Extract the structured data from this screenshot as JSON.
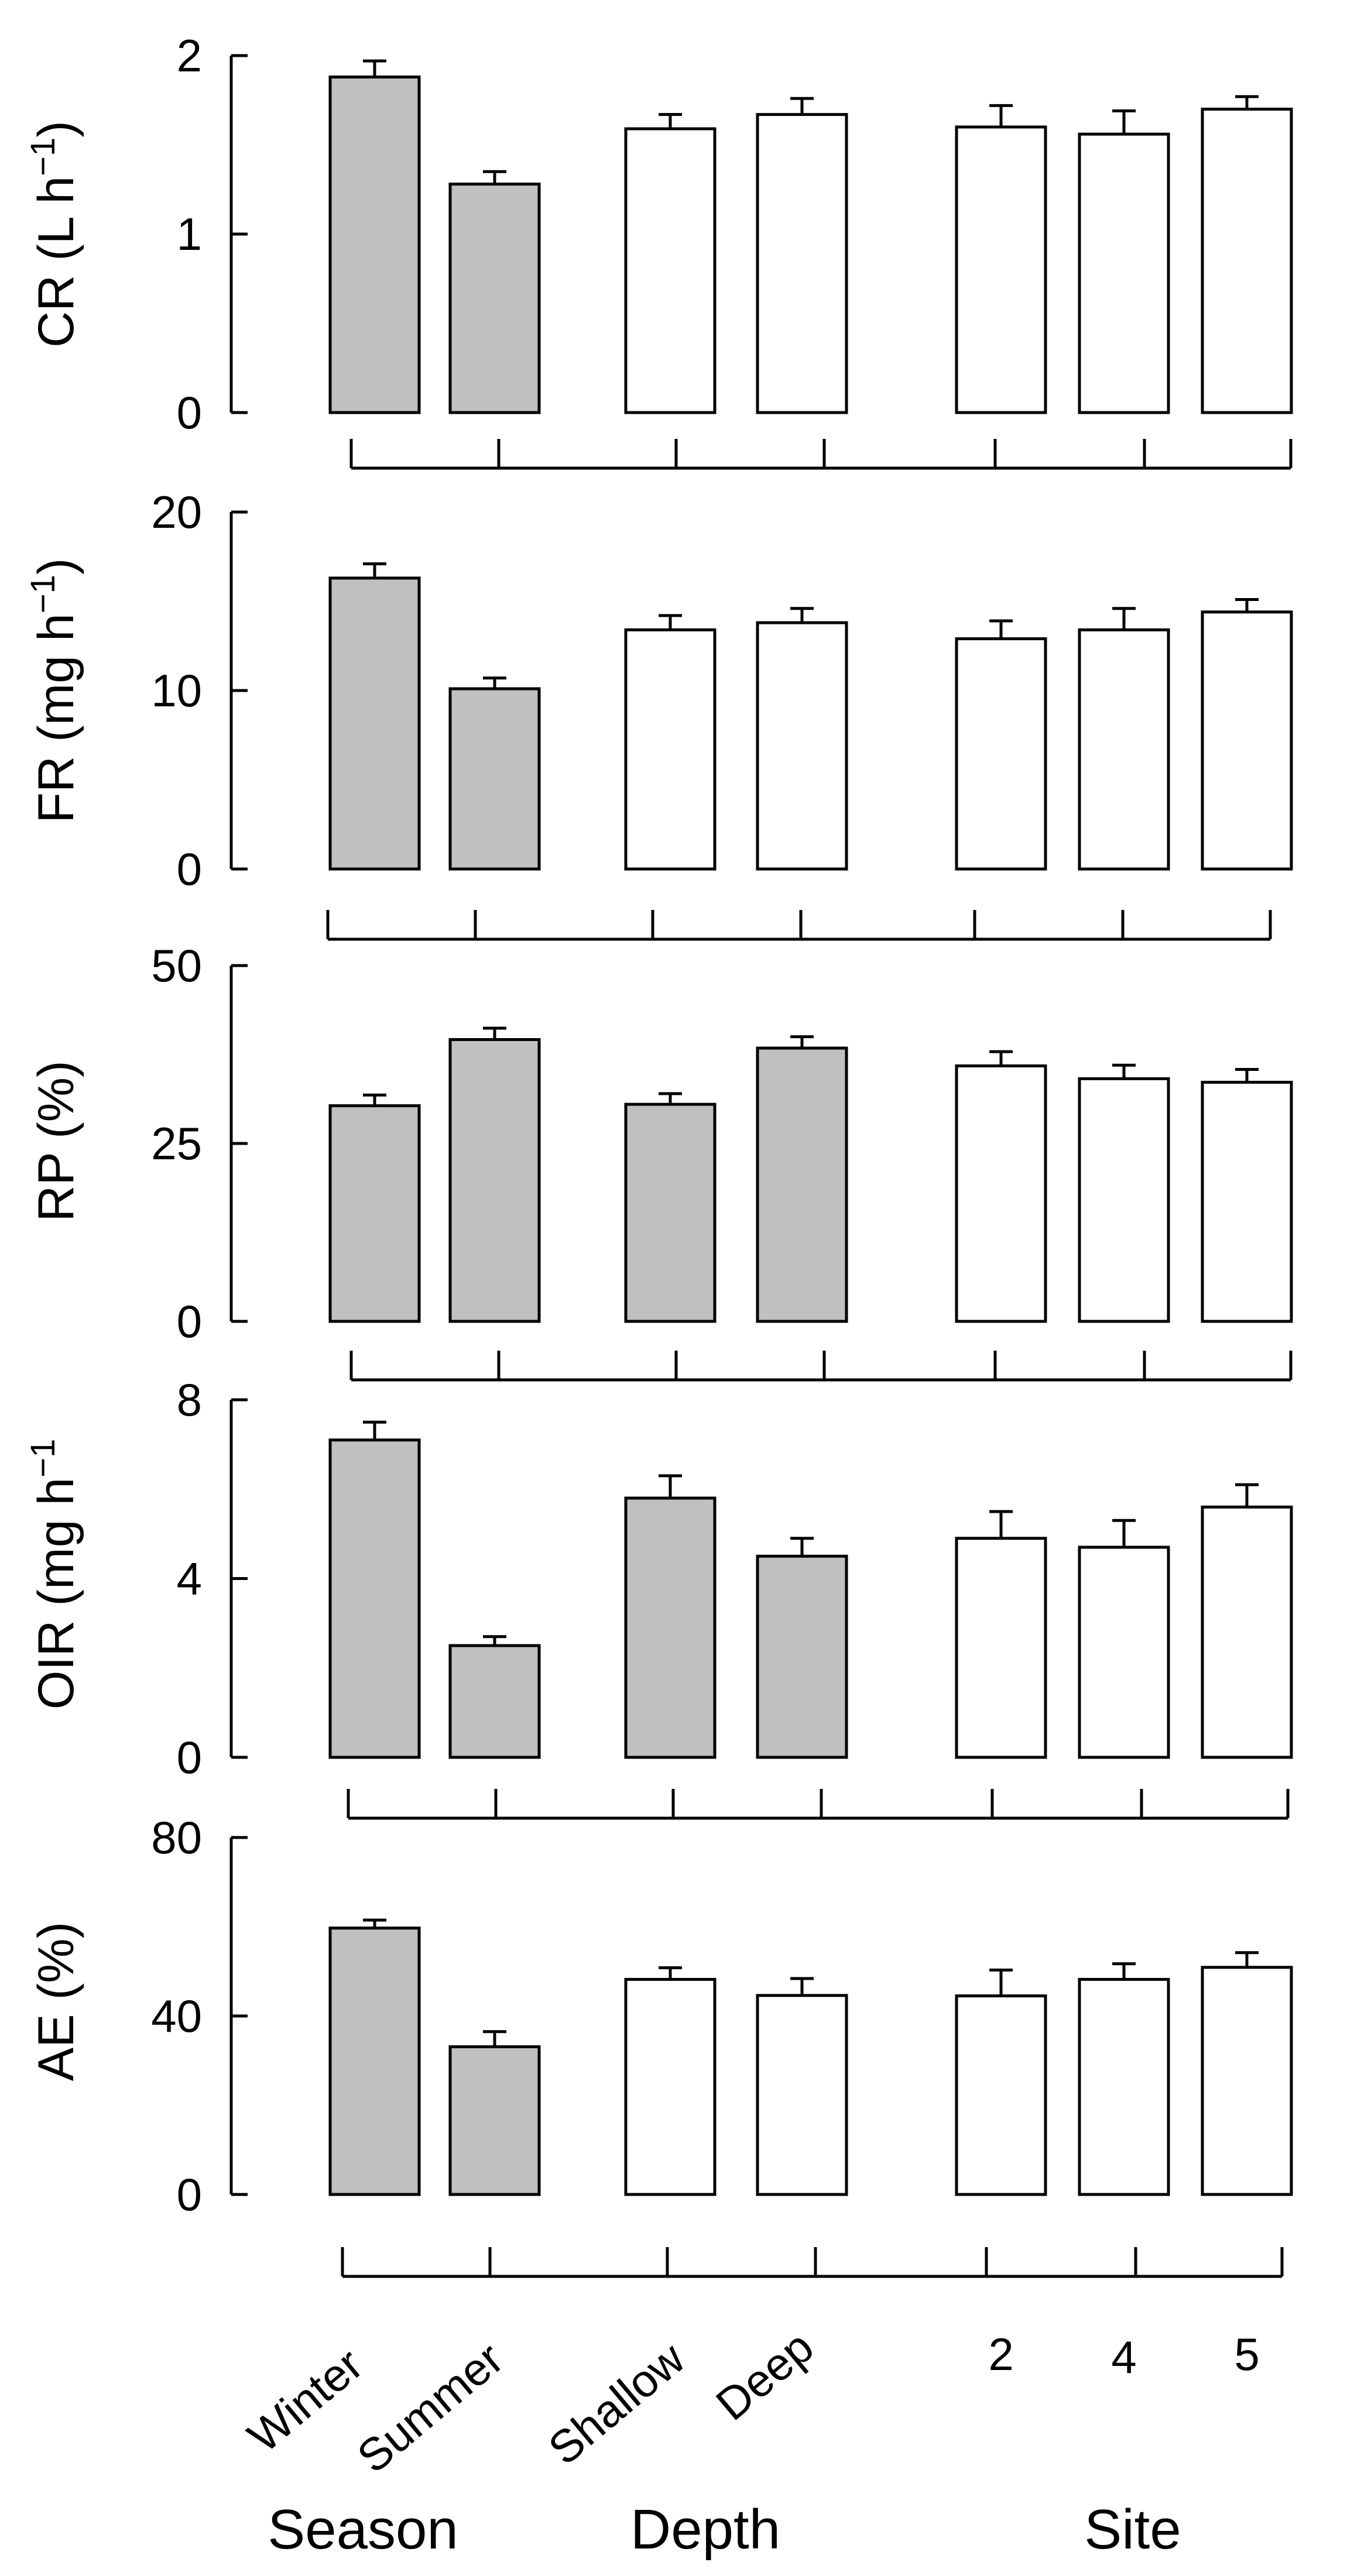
{
  "chart_data": {
    "type": "bar",
    "categories": [
      "Winter",
      "Summer",
      "Shallow",
      "Deep",
      "2",
      "4",
      "5"
    ],
    "groups": [
      {
        "name": "Season",
        "categories": [
          "Winter",
          "Summer"
        ]
      },
      {
        "name": "Depth",
        "categories": [
          "Shallow",
          "Deep"
        ]
      },
      {
        "name": "Site",
        "categories": [
          "2",
          "4",
          "5"
        ]
      }
    ],
    "panels": [
      {
        "id": "cr",
        "ylabel_main": "CR (L h",
        "ylabel_sup": "−1",
        "ylabel_tail": ")",
        "ylim": [
          0,
          2
        ],
        "yticks": [
          "0",
          "1",
          "2"
        ],
        "values": [
          1.88,
          1.28,
          1.59,
          1.67,
          1.6,
          1.56,
          1.7
        ],
        "errors": [
          0.09,
          0.07,
          0.08,
          0.09,
          0.12,
          0.13,
          0.07
        ],
        "fills": [
          "#c0c0c0",
          "#c0c0c0",
          "#ffffff",
          "#ffffff",
          "#ffffff",
          "#ffffff",
          "#ffffff"
        ]
      },
      {
        "id": "fr",
        "ylabel_main": "FR (mg h",
        "ylabel_sup": "−1",
        "ylabel_tail": ")",
        "ylim": [
          0,
          20
        ],
        "yticks": [
          "0",
          "10",
          "20"
        ],
        "values": [
          16.3,
          10.1,
          13.4,
          13.8,
          12.9,
          13.4,
          14.4
        ],
        "errors": [
          0.8,
          0.6,
          0.8,
          0.8,
          1.0,
          1.2,
          0.7
        ],
        "fills": [
          "#c0c0c0",
          "#c0c0c0",
          "#ffffff",
          "#ffffff",
          "#ffffff",
          "#ffffff",
          "#ffffff"
        ]
      },
      {
        "id": "rp",
        "ylabel_main": "RP (%)",
        "ylabel_sup": "",
        "ylabel_tail": "",
        "ylim": [
          0,
          50
        ],
        "yticks": [
          "0",
          "25",
          "50"
        ],
        "values": [
          30.3,
          39.6,
          30.5,
          38.4,
          35.9,
          34.1,
          33.6
        ],
        "errors": [
          1.5,
          1.6,
          1.5,
          1.6,
          2.0,
          1.9,
          1.8
        ],
        "fills": [
          "#c0c0c0",
          "#c0c0c0",
          "#c0c0c0",
          "#c0c0c0",
          "#ffffff",
          "#ffffff",
          "#ffffff"
        ]
      },
      {
        "id": "oir",
        "ylabel_main": "OIR (mg h",
        "ylabel_sup": "−1",
        "ylabel_tail": "",
        "ylim": [
          0,
          8
        ],
        "yticks": [
          "0",
          "4",
          "8"
        ],
        "values": [
          7.1,
          2.5,
          5.8,
          4.5,
          4.9,
          4.7,
          5.6
        ],
        "errors": [
          0.4,
          0.2,
          0.5,
          0.4,
          0.6,
          0.6,
          0.5
        ],
        "fills": [
          "#c0c0c0",
          "#c0c0c0",
          "#c0c0c0",
          "#c0c0c0",
          "#ffffff",
          "#ffffff",
          "#ffffff"
        ]
      },
      {
        "id": "ae",
        "ylabel_main": "AE (%)",
        "ylabel_sup": "",
        "ylabel_tail": "",
        "ylim": [
          0,
          80
        ],
        "yticks": [
          "0",
          "40",
          "80"
        ],
        "values": [
          59.7,
          33.1,
          48.2,
          44.6,
          44.5,
          48.2,
          50.9
        ],
        "errors": [
          1.8,
          3.4,
          2.6,
          3.8,
          5.8,
          3.5,
          3.3
        ],
        "fills": [
          "#c0c0c0",
          "#c0c0c0",
          "#ffffff",
          "#ffffff",
          "#ffffff",
          "#ffffff",
          "#ffffff"
        ]
      }
    ]
  }
}
